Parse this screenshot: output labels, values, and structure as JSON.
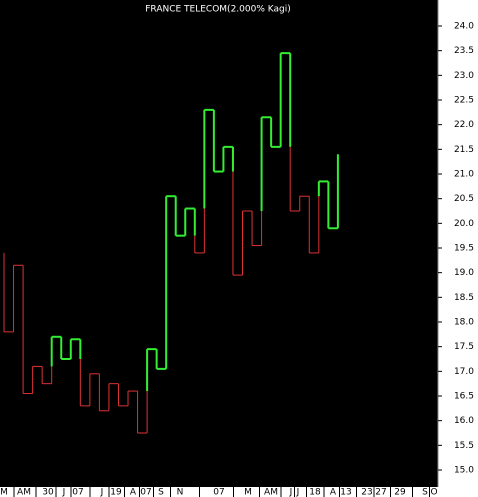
{
  "chart_data": {
    "type": "kagi",
    "title": "FRANCE TELECOM(2.000% Kagi)",
    "values": [
      19.4,
      17.8,
      19.15,
      16.55,
      17.1,
      16.75,
      17.7,
      17.25,
      17.65,
      16.3,
      16.95,
      16.2,
      16.75,
      16.3,
      16.6,
      15.75,
      17.45,
      17.05,
      20.55,
      19.75,
      20.3,
      19.4,
      22.3,
      21.05,
      21.55,
      18.95,
      20.25,
      19.55,
      22.15,
      21.55,
      23.45,
      20.25,
      20.55,
      19.4,
      20.85,
      19.9,
      21.4
    ],
    "yang_color": "#33ee33",
    "yin_color": "#dd3333",
    "x_labels": [
      "M",
      "AM",
      "30",
      "J",
      "07",
      "J",
      "19",
      "A",
      "07",
      "S",
      "N",
      "07",
      "M",
      "AM",
      "J",
      "J",
      "18",
      "A",
      "13",
      "23",
      "27",
      "29",
      "S",
      "O"
    ],
    "ylim": [
      14.5,
      24.5
    ],
    "yticks": [
      {
        "value": 15,
        "label": "15.0"
      },
      {
        "value": 15.5,
        "label": "15.5"
      },
      {
        "value": 16,
        "label": "16.0"
      },
      {
        "value": 16.5,
        "label": "16.5"
      },
      {
        "value": 17,
        "label": "17.0"
      },
      {
        "value": 17.5,
        "label": "17.5"
      },
      {
        "value": 18,
        "label": "18.0"
      },
      {
        "value": 18.5,
        "label": "18.5"
      },
      {
        "value": 19,
        "label": "19.0"
      },
      {
        "value": 19.5,
        "label": "19.5"
      },
      {
        "value": 20,
        "label": "20.0"
      },
      {
        "value": 20.5,
        "label": "20.5"
      },
      {
        "value": 21,
        "label": "21.0"
      },
      {
        "value": 21.5,
        "label": "21.5"
      },
      {
        "value": 22,
        "label": "22.0"
      },
      {
        "value": 22.5,
        "label": "22.5"
      },
      {
        "value": 23,
        "label": "23.0"
      },
      {
        "value": 23.5,
        "label": "23.5"
      },
      {
        "value": 24,
        "label": "24.0"
      }
    ]
  }
}
